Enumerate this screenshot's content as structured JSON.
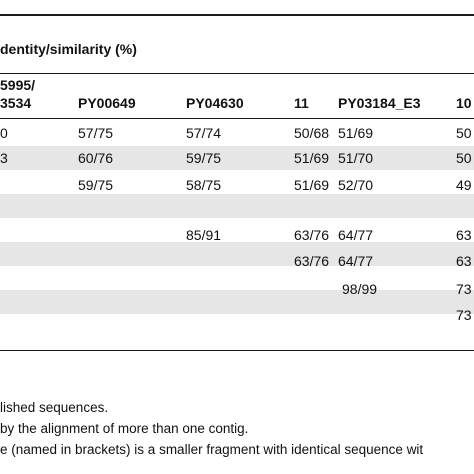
{
  "table": {
    "group_header": "dentity/similarity (%)",
    "col_headers": [
      {
        "line1": "5995/",
        "line2": "3534"
      },
      {
        "line1": "",
        "line2": "PY00649"
      },
      {
        "line1": "",
        "line2": "PY04630"
      },
      {
        "line1": "",
        "line2": "11"
      },
      {
        "line1": "",
        "line2": "PY03184_E3"
      },
      {
        "line1": "",
        "line2": "10"
      }
    ],
    "rows": [
      [
        "0",
        "57/75",
        "57/74",
        "50/68",
        "51/69",
        "50"
      ],
      [
        "3",
        "60/76",
        "59/75",
        "51/69",
        "51/70",
        "50"
      ],
      [
        "",
        "59/75",
        "58/75",
        "51/69",
        "52/70",
        "49"
      ],
      [
        "",
        "",
        "85/91",
        "63/76",
        "64/77",
        "63"
      ],
      [
        "",
        "",
        "",
        "63/76",
        "64/77",
        "63"
      ],
      [
        "",
        "",
        "",
        "",
        "98/99",
        "73"
      ],
      [
        "",
        "",
        "",
        "",
        "",
        "73"
      ],
      [
        "",
        "",
        "",
        "",
        "",
        ""
      ]
    ]
  },
  "footnotes": [
    "lished sequences.",
    "by the alignment of more than one contig.",
    "e (named in brackets) is a smaller fragment with identical sequence wit"
  ]
}
